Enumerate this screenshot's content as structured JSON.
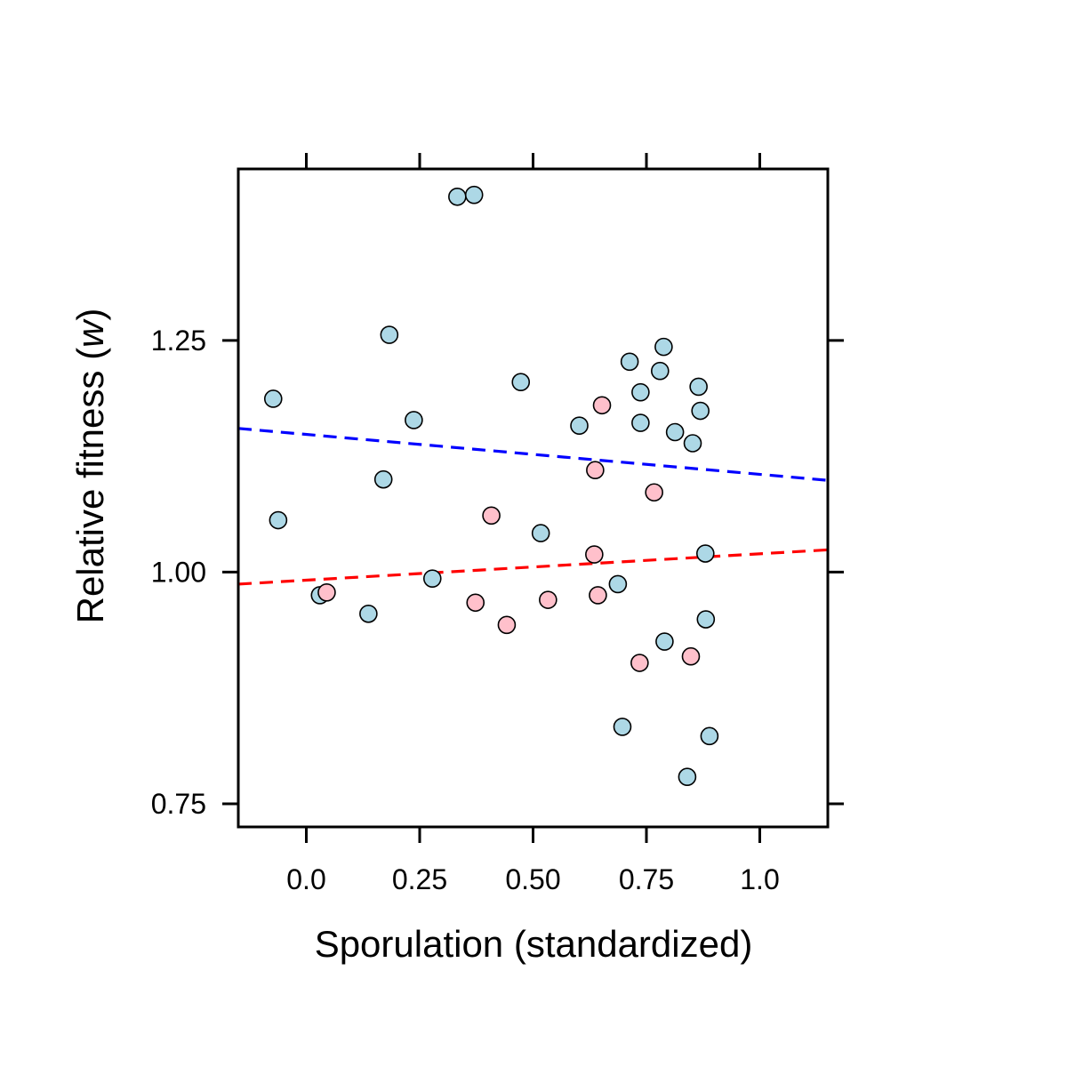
{
  "chart_data": {
    "type": "scatter",
    "xlabel": "Sporulation (standardized)",
    "ylabel_prefix": "Relative fitness (",
    "ylabel_symbol": "w",
    "ylabel_suffix": ")",
    "xlim": [
      -0.15,
      1.15
    ],
    "ylim": [
      0.725,
      1.435
    ],
    "x_ticks": [
      0.0,
      0.25,
      0.5,
      0.75,
      1.0
    ],
    "x_tick_labels": [
      "0.0",
      "0.25",
      "0.50",
      "0.75",
      "1.0"
    ],
    "y_ticks": [
      0.75,
      1.0,
      1.25
    ],
    "y_tick_labels": [
      "0.75",
      "1.00",
      "1.25"
    ],
    "grid": false,
    "series": [
      {
        "color": "#add8e6",
        "points": [
          [
            -0.073,
            1.187
          ],
          [
            -0.062,
            1.056
          ],
          [
            0.03,
            0.975
          ],
          [
            0.137,
            0.955
          ],
          [
            0.17,
            1.1
          ],
          [
            0.183,
            1.256
          ],
          [
            0.237,
            1.164
          ],
          [
            0.278,
            0.993
          ],
          [
            0.333,
            1.405
          ],
          [
            0.37,
            1.407
          ],
          [
            0.473,
            1.205
          ],
          [
            0.517,
            1.042
          ],
          [
            0.602,
            1.158
          ],
          [
            0.687,
            0.987
          ],
          [
            0.697,
            0.833
          ],
          [
            0.713,
            1.227
          ],
          [
            0.737,
            1.194
          ],
          [
            0.737,
            1.161
          ],
          [
            0.78,
            1.217
          ],
          [
            0.788,
            1.243
          ],
          [
            0.79,
            0.925
          ],
          [
            0.813,
            1.151
          ],
          [
            0.84,
            0.779
          ],
          [
            0.852,
            1.139
          ],
          [
            0.865,
            1.2
          ],
          [
            0.869,
            1.174
          ],
          [
            0.88,
            1.02
          ],
          [
            0.881,
            0.949
          ],
          [
            0.889,
            0.823
          ]
        ]
      },
      {
        "color": "#ffc0cb",
        "points": [
          [
            0.045,
            0.978
          ],
          [
            0.373,
            0.967
          ],
          [
            0.408,
            1.061
          ],
          [
            0.442,
            0.943
          ],
          [
            0.533,
            0.97
          ],
          [
            0.635,
            1.019
          ],
          [
            0.637,
            1.11
          ],
          [
            0.643,
            0.975
          ],
          [
            0.652,
            1.18
          ],
          [
            0.735,
            0.902
          ],
          [
            0.767,
            1.086
          ],
          [
            0.848,
            0.909
          ]
        ]
      }
    ],
    "trend_lines": [
      {
        "color": "#0000ff",
        "x": [
          -0.15,
          1.15
        ],
        "y": [
          1.155,
          1.099
        ]
      },
      {
        "color": "#ff0000",
        "x": [
          -0.15,
          1.15
        ],
        "y": [
          0.987,
          1.024
        ]
      }
    ]
  }
}
